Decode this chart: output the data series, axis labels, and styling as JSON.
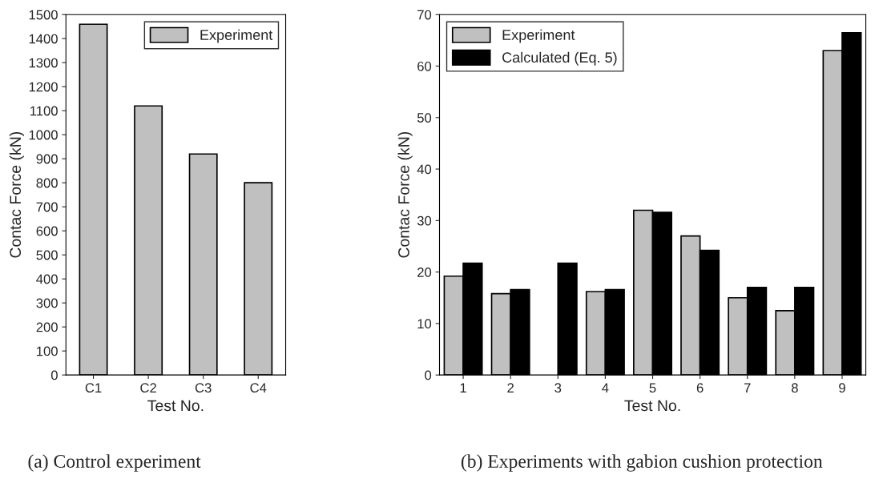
{
  "chart_data": [
    {
      "type": "bar",
      "xlabel": "Test No.",
      "ylabel": "Contac Force (kN)",
      "categories": [
        "C1",
        "C2",
        "C3",
        "C4"
      ],
      "series": [
        {
          "name": "Experiment",
          "color": "#c0c0c0",
          "values": [
            1460,
            1120,
            920,
            800
          ]
        }
      ],
      "ylim": [
        0,
        1500
      ],
      "yticks": [
        0,
        100,
        200,
        300,
        400,
        500,
        600,
        700,
        800,
        900,
        1000,
        1100,
        1200,
        1300,
        1400,
        1500
      ],
      "legend": "top right",
      "grid": false,
      "annotations": [
        "(a) Control experiment"
      ]
    },
    {
      "type": "bar",
      "xlabel": "Test No.",
      "ylabel": "Contac Force (kN)",
      "categories": [
        "1",
        "2",
        "3",
        "4",
        "5",
        "6",
        "7",
        "8",
        "9"
      ],
      "series": [
        {
          "name": "Experiment",
          "color": "#c0c0c0",
          "values": [
            19.2,
            15.8,
            null,
            16.2,
            32,
            27,
            15,
            12.5,
            63
          ]
        },
        {
          "name": "Calculated (Eq. 5)",
          "color": "#000000",
          "values": [
            21.7,
            16.6,
            21.7,
            16.6,
            31.6,
            24.2,
            17,
            17,
            66.5
          ]
        }
      ],
      "ylim": [
        0,
        70
      ],
      "yticks": [
        0,
        10,
        20,
        30,
        40,
        50,
        60,
        70
      ],
      "legend": "top left",
      "grid": false,
      "annotations": [
        "(b) Experiments with gabion cushion protection"
      ]
    }
  ]
}
